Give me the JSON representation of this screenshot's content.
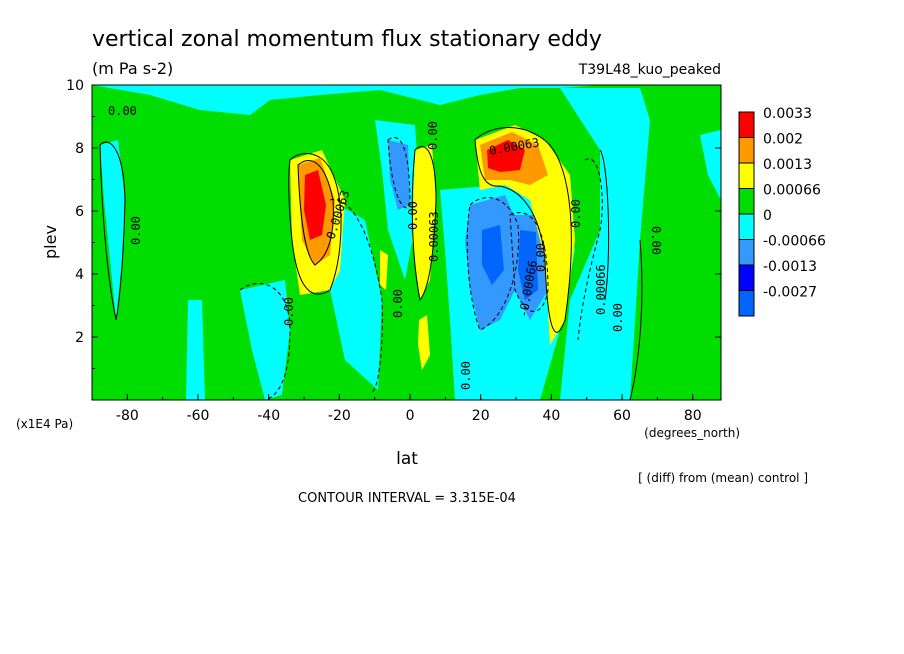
{
  "chart_data": {
    "type": "heatmap",
    "title": "vertical zonal momentum flux stationary eddy",
    "subtitle": "(m Pa s-2)",
    "experiment": "T39L48_kuo_peaked",
    "xlabel": "lat",
    "x_unit": "(degrees_north)",
    "ylabel": "plev",
    "y_unit": "(x1E4 Pa)",
    "xlim": [
      -90,
      88
    ],
    "ylim": [
      10,
      0
    ],
    "x_ticks": [
      "-80",
      "-60",
      "-40",
      "-20",
      "0",
      "20",
      "40",
      "60",
      "80"
    ],
    "y_ticks": [
      "2",
      "4",
      "6",
      "8",
      "10"
    ],
    "legend_levels": [
      "0.0033",
      "0.002",
      "0.0013",
      "0.00066",
      "0",
      "-0.00066",
      "-0.0013",
      "-0.0027"
    ],
    "legend_colors": [
      "#ff0000",
      "#ff9900",
      "#ffff00",
      "#00dd00",
      "#00ffff",
      "#3399ff",
      "#0000ff",
      "#0066ff"
    ],
    "contour_labels": [
      "0.00",
      "0.00",
      "0.00",
      "0.00",
      "0.00",
      "0.00",
      "0.00",
      "0.00",
      "0.00063",
      "0.00063",
      "0.00063",
      "0.00",
      "-0.00066",
      "0.00066",
      "0.00",
      "0.00"
    ],
    "note": "[ (diff) from (mean) control ]",
    "contour_interval": "CONTOUR INTERVAL = 3.315E-04"
  }
}
